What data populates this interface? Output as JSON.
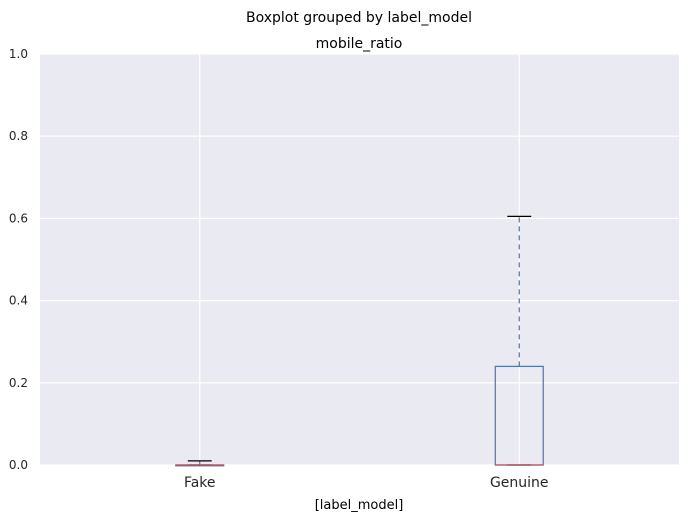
{
  "chart_data": {
    "type": "boxplot",
    "suptitle": "Boxplot grouped by label_model",
    "title": "mobile_ratio",
    "xlabel": "[label_model]",
    "ylabel": "",
    "ylim": [
      0.0,
      1.0
    ],
    "yticks": [
      "0.0",
      "0.2",
      "0.4",
      "0.6",
      "0.8",
      "1.0"
    ],
    "categories": [
      "Fake",
      "Genuine"
    ],
    "boxes": [
      {
        "category": "Fake",
        "whisker_low": 0.0,
        "q1": 0.0,
        "median": 0.0,
        "q3": 0.0,
        "whisker_high": 0.01
      },
      {
        "category": "Genuine",
        "whisker_low": 0.0,
        "q1": 0.0,
        "median": 0.0,
        "q3": 0.24,
        "whisker_high": 0.605
      }
    ],
    "grid": true,
    "colors": {
      "plot_background": "#eaeaf2",
      "grid": "#ffffff",
      "box": "#4c72b0",
      "median": "#c44e52",
      "cap": "#000000",
      "text": "#262626"
    }
  }
}
